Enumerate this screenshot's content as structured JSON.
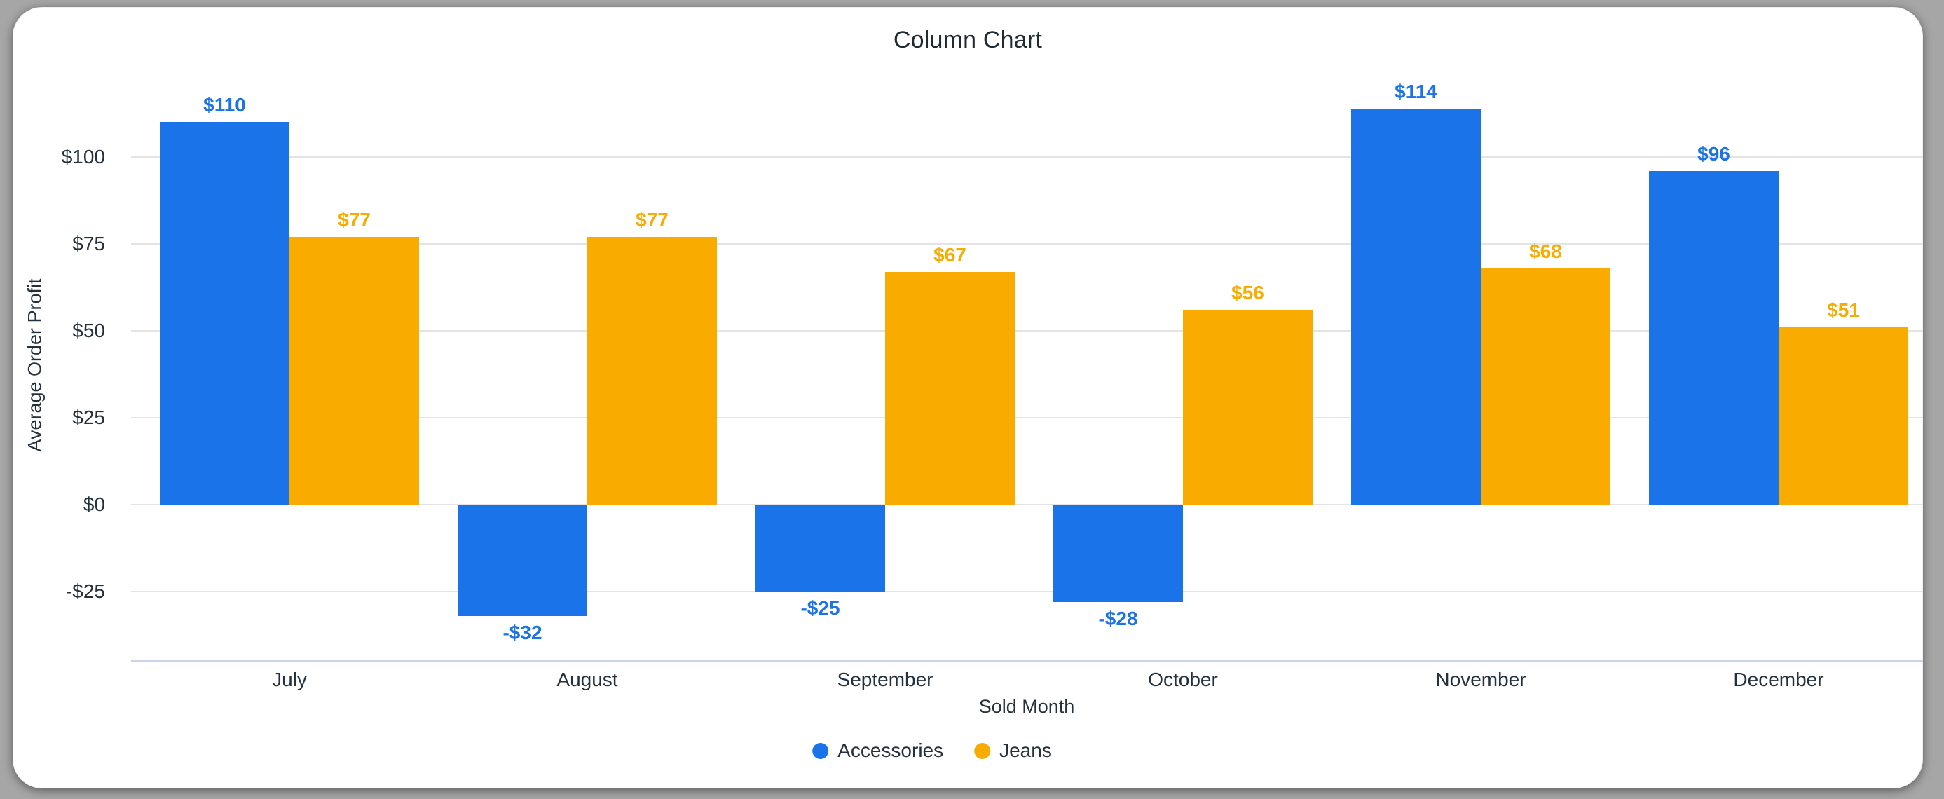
{
  "chart_data": {
    "type": "bar",
    "title": "Column Chart",
    "xlabel": "Sold Month",
    "ylabel": "Average Order Profit",
    "categories": [
      "July",
      "August",
      "September",
      "October",
      "November",
      "December"
    ],
    "series": [
      {
        "name": "Accessories",
        "color": "#1a73e8",
        "values": [
          110,
          -32,
          -25,
          -28,
          114,
          96
        ],
        "data_labels": [
          "$110",
          "-$32",
          "-$25",
          "-$28",
          "$114",
          "$96"
        ]
      },
      {
        "name": "Jeans",
        "color": "#f9ab00",
        "values": [
          77,
          77,
          67,
          56,
          68,
          51
        ],
        "data_labels": [
          "$77",
          "$77",
          "$67",
          "$56",
          "$68",
          "$51"
        ]
      }
    ],
    "y_ticks": [
      {
        "value": 100,
        "label": "$100"
      },
      {
        "value": 75,
        "label": "$75"
      },
      {
        "value": 50,
        "label": "$50"
      },
      {
        "value": 25,
        "label": "$25"
      },
      {
        "value": 0,
        "label": "$0"
      },
      {
        "value": -25,
        "label": "-$25"
      }
    ],
    "ylim": [
      -45,
      125
    ],
    "grid": true,
    "legend_position": "bottom",
    "colors": {
      "accessories": "#1a73e8",
      "jeans": "#f9ab00",
      "text": "#24313c",
      "title_text": "#202a33",
      "gridline": "#e4e4e4",
      "axis_line": "#c9d4ea",
      "card_background": "#ffffff",
      "frame_background": "#a6a6a6"
    }
  }
}
